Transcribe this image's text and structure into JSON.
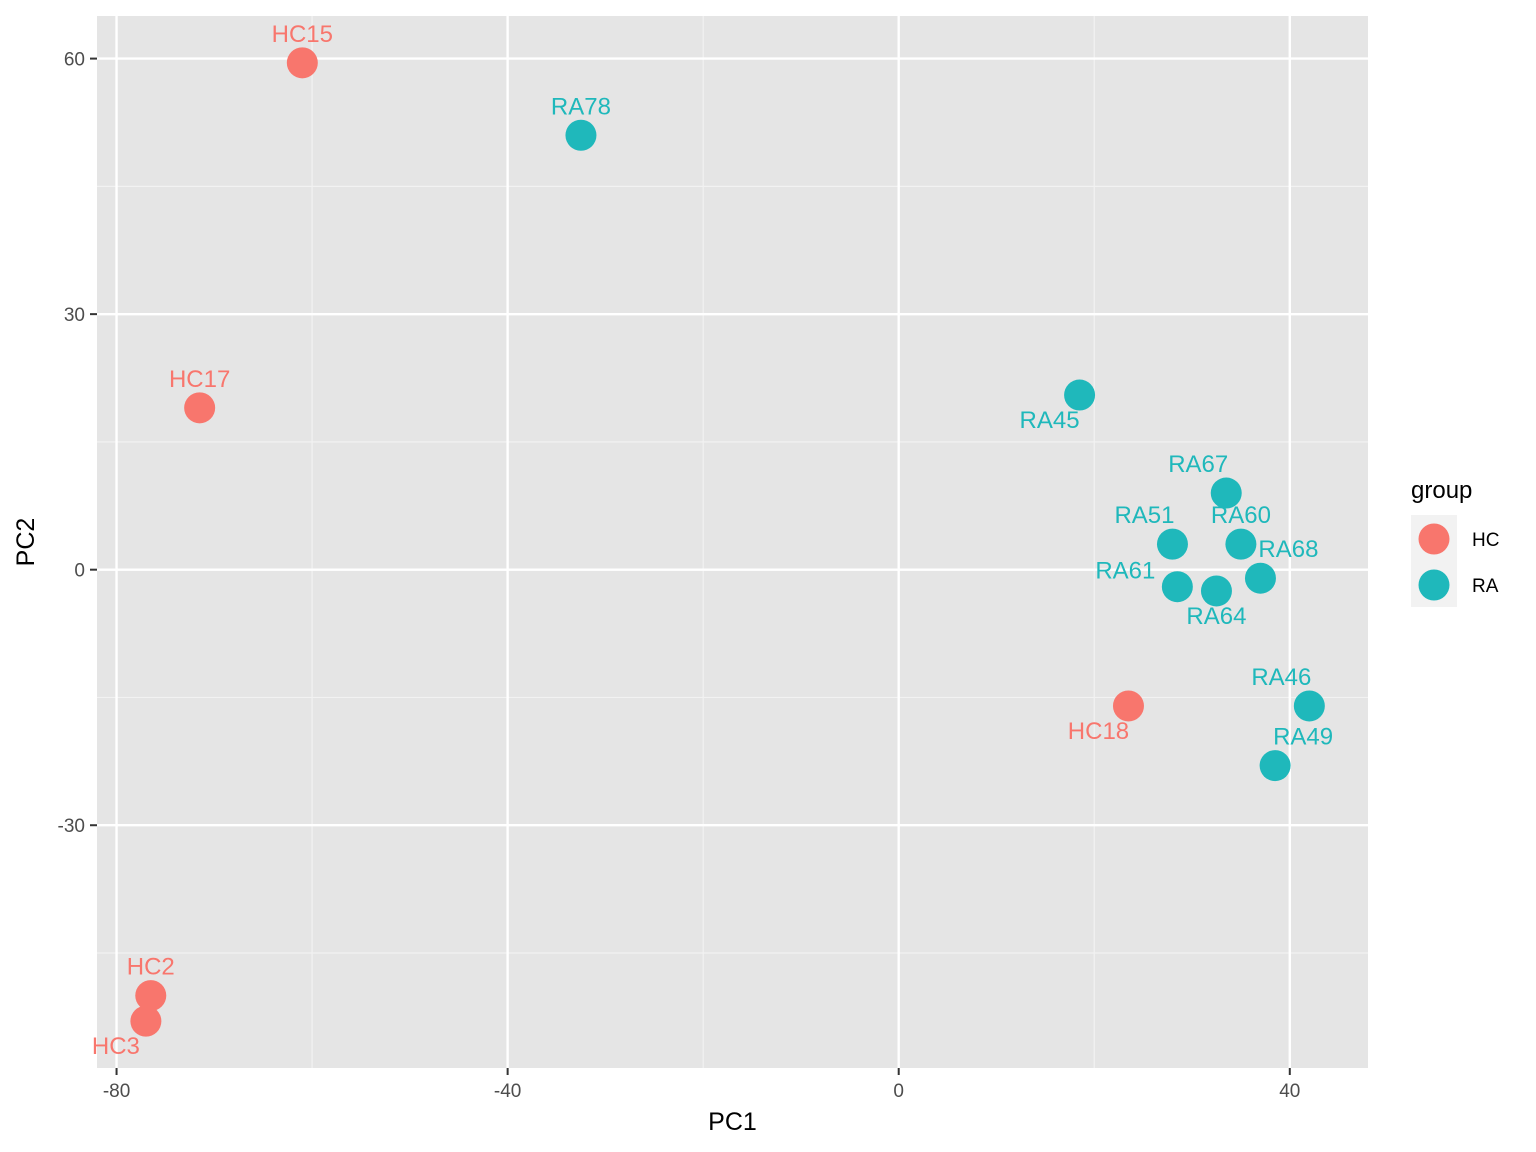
{
  "chart_data": {
    "type": "scatter",
    "xlabel": "PC1",
    "ylabel": "PC2",
    "xlim": [
      -82,
      48
    ],
    "ylim": [
      -58.5,
      65
    ],
    "x_ticks": [
      -80,
      -40,
      0,
      40
    ],
    "y_ticks": [
      -30,
      0,
      30,
      60
    ],
    "x_tick_labels": [
      "-80",
      "-40",
      "0",
      "40"
    ],
    "y_tick_labels": [
      "-30",
      "0",
      "30",
      "60"
    ],
    "grid": true,
    "background": "#e5e5e5",
    "legend": {
      "title": "group",
      "placement": "right",
      "entries": [
        {
          "name": "HC",
          "color": "#f8766d"
        },
        {
          "name": "RA",
          "color": "#1fb8bb"
        }
      ]
    },
    "series": [
      {
        "name": "HC",
        "color": "#f8766d",
        "points": [
          {
            "label": "HC15",
            "x": -61,
            "y": 59.5,
            "label_pos": "above"
          },
          {
            "label": "HC17",
            "x": -71.5,
            "y": 19,
            "label_pos": "above"
          },
          {
            "label": "HC2",
            "x": -76.5,
            "y": -50,
            "label_pos": "above"
          },
          {
            "label": "HC3",
            "x": -77,
            "y": -53,
            "label_pos": "below-left"
          },
          {
            "label": "HC18",
            "x": 23.5,
            "y": -16,
            "label_pos": "below-left"
          }
        ]
      },
      {
        "name": "RA",
        "color": "#1fb8bb",
        "points": [
          {
            "label": "RA78",
            "x": -32.5,
            "y": 51,
            "label_pos": "above"
          },
          {
            "label": "RA45",
            "x": 18.5,
            "y": 20.5,
            "label_pos": "below-left"
          },
          {
            "label": "RA67",
            "x": 33.5,
            "y": 9,
            "label_pos": "above-left"
          },
          {
            "label": "RA51",
            "x": 28,
            "y": 3,
            "label_pos": "above-left"
          },
          {
            "label": "RA60",
            "x": 35,
            "y": 3,
            "label_pos": "above"
          },
          {
            "label": "RA61",
            "x": 28.5,
            "y": -2,
            "label_pos": "left"
          },
          {
            "label": "RA64",
            "x": 32.5,
            "y": -2.5,
            "label_pos": "below"
          },
          {
            "label": "RA68",
            "x": 37,
            "y": -1,
            "label_pos": "above-right"
          },
          {
            "label": "RA46",
            "x": 42,
            "y": -16,
            "label_pos": "above-left"
          },
          {
            "label": "RA49",
            "x": 38.5,
            "y": -23,
            "label_pos": "above-right"
          }
        ]
      }
    ]
  }
}
